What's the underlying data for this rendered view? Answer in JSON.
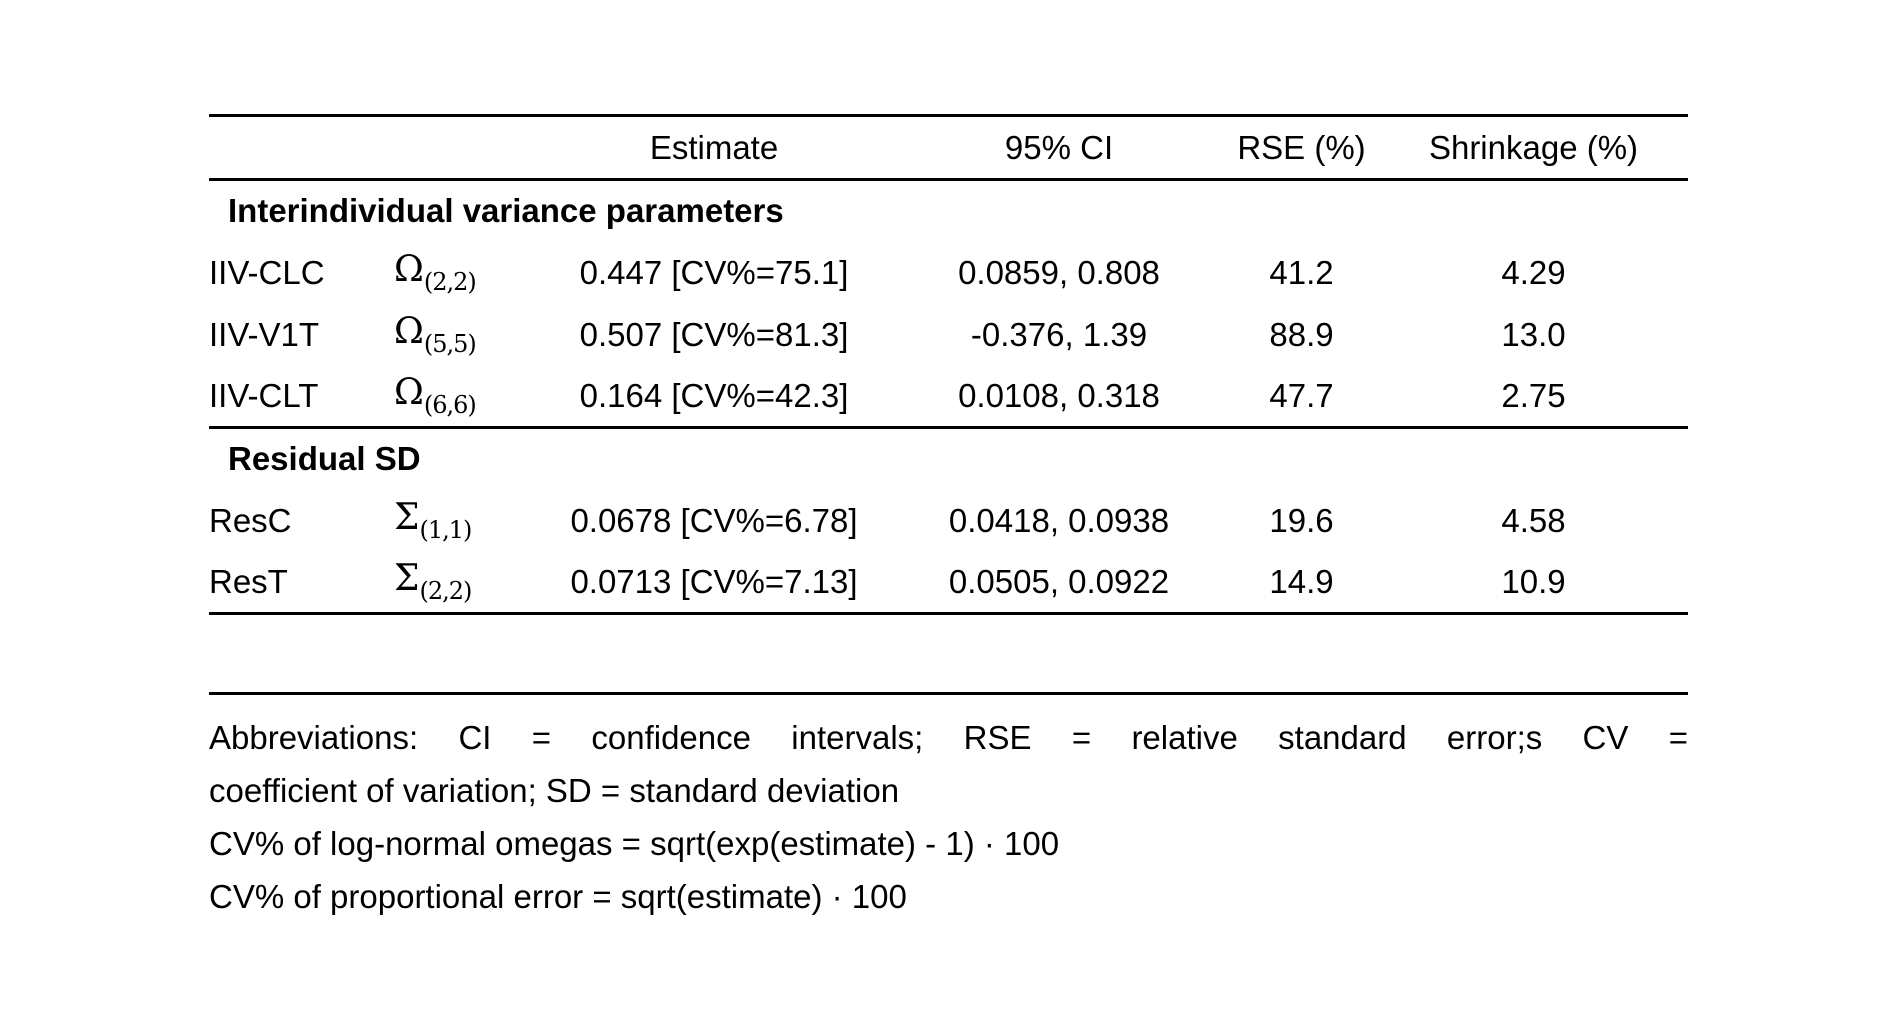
{
  "table": {
    "headers": {
      "estimate": "Estimate",
      "ci": "95% CI",
      "rse": "RSE (%)",
      "shrinkage": "Shrinkage (%)"
    },
    "sections": [
      {
        "title": "Interindividual variance parameters",
        "rows": [
          {
            "name": "IIV-CLC",
            "symbol_base": "Ω",
            "symbol_sub": "(2,2)",
            "estimate": "0.447 [CV%=75.1]",
            "ci": "0.0859, 0.808",
            "rse": "41.2",
            "shrinkage": "4.29"
          },
          {
            "name": "IIV-V1T",
            "symbol_base": "Ω",
            "symbol_sub": "(5,5)",
            "estimate": "0.507 [CV%=81.3]",
            "ci": "-0.376, 1.39",
            "rse": "88.9",
            "shrinkage": "13.0"
          },
          {
            "name": "IIV-CLT",
            "symbol_base": "Ω",
            "symbol_sub": "(6,6)",
            "estimate": "0.164 [CV%=42.3]",
            "ci": "0.0108, 0.318",
            "rse": "47.7",
            "shrinkage": "2.75"
          }
        ]
      },
      {
        "title": "Residual SD",
        "rows": [
          {
            "name": "ResC",
            "symbol_base": "Σ",
            "symbol_sub": "(1,1)",
            "estimate": "0.0678 [CV%=6.78]",
            "ci": "0.0418, 0.0938",
            "rse": "19.6",
            "shrinkage": "4.58"
          },
          {
            "name": "ResT",
            "symbol_base": "Σ",
            "symbol_sub": "(2,2)",
            "estimate": "0.0713 [CV%=7.13]",
            "ci": "0.0505, 0.0922",
            "rse": "14.9",
            "shrinkage": "10.9"
          }
        ]
      }
    ]
  },
  "footnotes": {
    "line1": "Abbreviations: CI = confidence intervals; RSE = relative standard error;s CV =",
    "line2": "coefficient of variation; SD = standard deviation",
    "line3": "CV% of log-normal omegas = sqrt(exp(estimate) - 1) · 100",
    "line4": "CV% of proportional error = sqrt(estimate) · 100"
  }
}
